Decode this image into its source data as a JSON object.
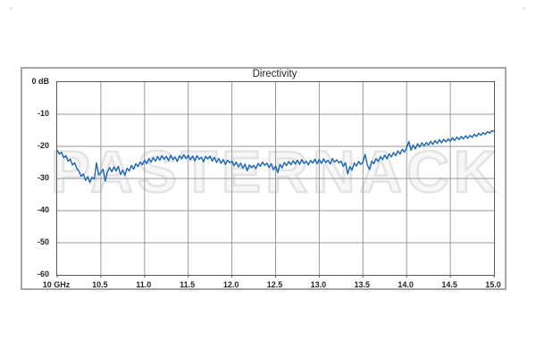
{
  "decor": {
    "corner_dot_color": "#cfd5dc"
  },
  "chart_data": {
    "type": "line",
    "title": "Directivity",
    "watermark": "PASTERNACK",
    "xlabel": "",
    "ylabel": "",
    "x_unit": "GHz",
    "y_unit": "dB",
    "xlim": [
      10.0,
      15.0
    ],
    "ylim": [
      -60,
      0
    ],
    "grid": true,
    "legend": "none",
    "x_tick_step": 0.5,
    "x_tick_labels": [
      "10 GHz",
      "10.5",
      "11.0",
      "11.5",
      "12.0",
      "12.5",
      "13.0",
      "13.5",
      "14.0",
      "14.5",
      "15.0"
    ],
    "y_tick_values": [
      0,
      -10,
      -20,
      -30,
      -40,
      -50,
      -60
    ],
    "y_tick_labels": [
      "0 dB",
      "-10",
      "-20",
      "-30",
      "-40",
      "-50",
      "-60"
    ],
    "line_color": "#1565c0",
    "grid_color": "#999999",
    "axis_color": "#595959",
    "frame_color": "#a6a6a6",
    "text_color": "#262626",
    "watermark_fill": "#f7f7f7",
    "watermark_stroke": "#e3e3e3",
    "x_start": 10.0,
    "x_step": 0.025,
    "series": [
      {
        "name": "Directivity",
        "values": [
          -21.3,
          -22.4,
          -21.8,
          -23.5,
          -22.9,
          -24.6,
          -24.0,
          -25.8,
          -25.1,
          -26.9,
          -27.8,
          -29.3,
          -28.6,
          -30.6,
          -29.4,
          -31.2,
          -29.6,
          -30.2,
          -25.1,
          -28.9,
          -28.2,
          -27.1,
          -30.8,
          -28.0,
          -26.6,
          -27.9,
          -26.4,
          -27.6,
          -26.2,
          -28.8,
          -27.4,
          -29.0,
          -26.8,
          -27.7,
          -25.9,
          -27.1,
          -25.4,
          -26.3,
          -24.9,
          -25.7,
          -24.3,
          -25.4,
          -23.8,
          -24.9,
          -23.5,
          -24.6,
          -23.2,
          -24.3,
          -22.9,
          -24.0,
          -23.1,
          -24.4,
          -22.8,
          -24.1,
          -23.3,
          -24.7,
          -22.9,
          -23.9,
          -22.6,
          -23.8,
          -22.8,
          -24.2,
          -23.0,
          -24.5,
          -22.9,
          -24.0,
          -23.4,
          -24.8,
          -23.1,
          -23.9,
          -23.0,
          -24.6,
          -23.4,
          -25.0,
          -23.8,
          -25.3,
          -24.1,
          -25.6,
          -24.3,
          -25.1,
          -24.6,
          -26.0,
          -24.9,
          -26.4,
          -25.2,
          -26.8,
          -25.5,
          -27.6,
          -25.8,
          -26.6,
          -25.9,
          -26.9,
          -25.3,
          -26.2,
          -24.9,
          -25.9,
          -25.2,
          -26.6,
          -25.4,
          -27.3,
          -26.1,
          -28.2,
          -25.6,
          -26.7,
          -25.0,
          -26.0,
          -24.7,
          -25.7,
          -24.5,
          -25.5,
          -24.3,
          -25.6,
          -24.1,
          -25.3,
          -24.6,
          -25.8,
          -24.4,
          -25.2,
          -24.0,
          -25.4,
          -24.1,
          -25.3,
          -23.9,
          -25.0,
          -24.3,
          -25.5,
          -23.8,
          -24.9,
          -24.2,
          -25.1,
          -24.6,
          -26.2,
          -25.1,
          -28.6,
          -26.3,
          -27.4,
          -25.2,
          -26.1,
          -24.7,
          -25.6,
          -24.9,
          -22.5,
          -25.8,
          -27.2,
          -24.6,
          -25.4,
          -23.8,
          -24.7,
          -23.2,
          -24.1,
          -22.7,
          -23.9,
          -22.3,
          -23.3,
          -21.9,
          -22.9,
          -21.4,
          -22.4,
          -20.9,
          -21.8,
          -20.4,
          -18.5,
          -21.2,
          -19.6,
          -20.8,
          -19.2,
          -20.2,
          -18.9,
          -19.9,
          -18.8,
          -19.6,
          -18.4,
          -19.4,
          -18.2,
          -19.1,
          -17.9,
          -18.9,
          -17.8,
          -18.6,
          -17.7,
          -18.4,
          -17.3,
          -18.2,
          -17.1,
          -17.9,
          -16.9,
          -17.7,
          -16.7,
          -17.5,
          -16.6,
          -17.2,
          -16.2,
          -16.9,
          -15.9,
          -16.6,
          -15.7,
          -16.3,
          -15.4,
          -15.9,
          -15.1,
          -15.3
        ]
      }
    ]
  }
}
